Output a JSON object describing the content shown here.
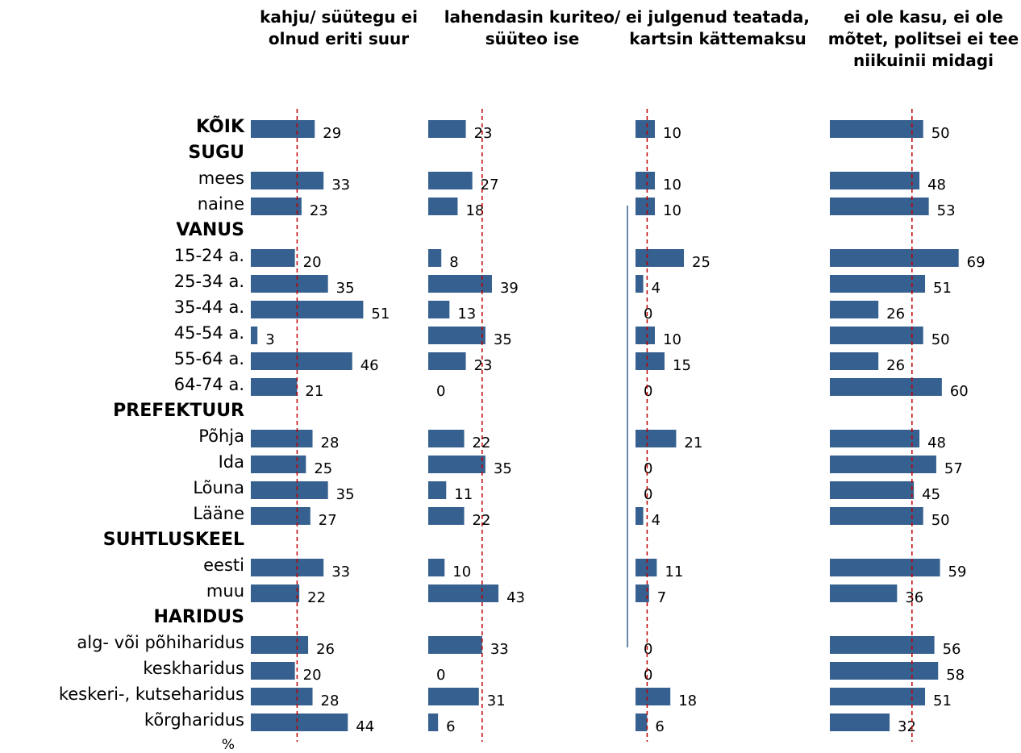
{
  "chart_data": {
    "type": "bar",
    "orientation": "horizontal",
    "categories": [
      "KÕIK",
      "SUGU",
      "mees",
      "naine",
      "VANUS",
      "15-24 a.",
      "25-34 a.",
      "35-44 a.",
      "45-54 a.",
      "55-64 a.",
      "64-74 a.",
      "PREFEKTUUR",
      "Põhja",
      "Ida",
      "Lõuna",
      "Lääne",
      "SUHTLUSKEEL",
      "eesti",
      "muu",
      "HARIDUS",
      "alg- või põhiharidus",
      "keskharidus",
      "keskeri-, kutseharidus",
      "kõrgharidus"
    ],
    "unit_label": "%",
    "series": [
      {
        "name": "kahju/ süütegu ei olnud eriti suur",
        "color": "#36608f",
        "xlim": [
          0,
          60
        ],
        "reference": 21,
        "values": [
          29,
          null,
          33,
          23,
          null,
          20,
          35,
          51,
          3,
          46,
          21,
          null,
          28,
          25,
          35,
          27,
          null,
          33,
          22,
          null,
          26,
          20,
          28,
          44
        ]
      },
      {
        "name": "lahendasin kuriteo/ süüteo ise",
        "color": "#36608f",
        "xlim": [
          0,
          80
        ],
        "reference": 33,
        "values": [
          23,
          null,
          27,
          18,
          null,
          8,
          39,
          13,
          35,
          23,
          0,
          null,
          22,
          35,
          11,
          22,
          null,
          10,
          43,
          null,
          33,
          0,
          31,
          6
        ]
      },
      {
        "name": "ei julgenud teatada, kartsin kättemaksu",
        "color": "#36608f",
        "xlim": [
          0,
          70
        ],
        "reference": 6,
        "values": [
          10,
          null,
          10,
          10,
          null,
          25,
          4,
          0,
          10,
          15,
          0,
          null,
          21,
          0,
          0,
          4,
          null,
          11,
          7,
          null,
          0,
          0,
          18,
          6
        ]
      },
      {
        "name": "ei ole kasu, ei ole mõtet, politsei ei tee niikuinii midagi",
        "color": "#36608f",
        "xlim": [
          0,
          70
        ],
        "reference": 44,
        "values": [
          50,
          null,
          48,
          53,
          null,
          69,
          51,
          26,
          50,
          26,
          60,
          null,
          48,
          57,
          45,
          50,
          null,
          59,
          36,
          null,
          56,
          58,
          51,
          32
        ]
      }
    ]
  }
}
